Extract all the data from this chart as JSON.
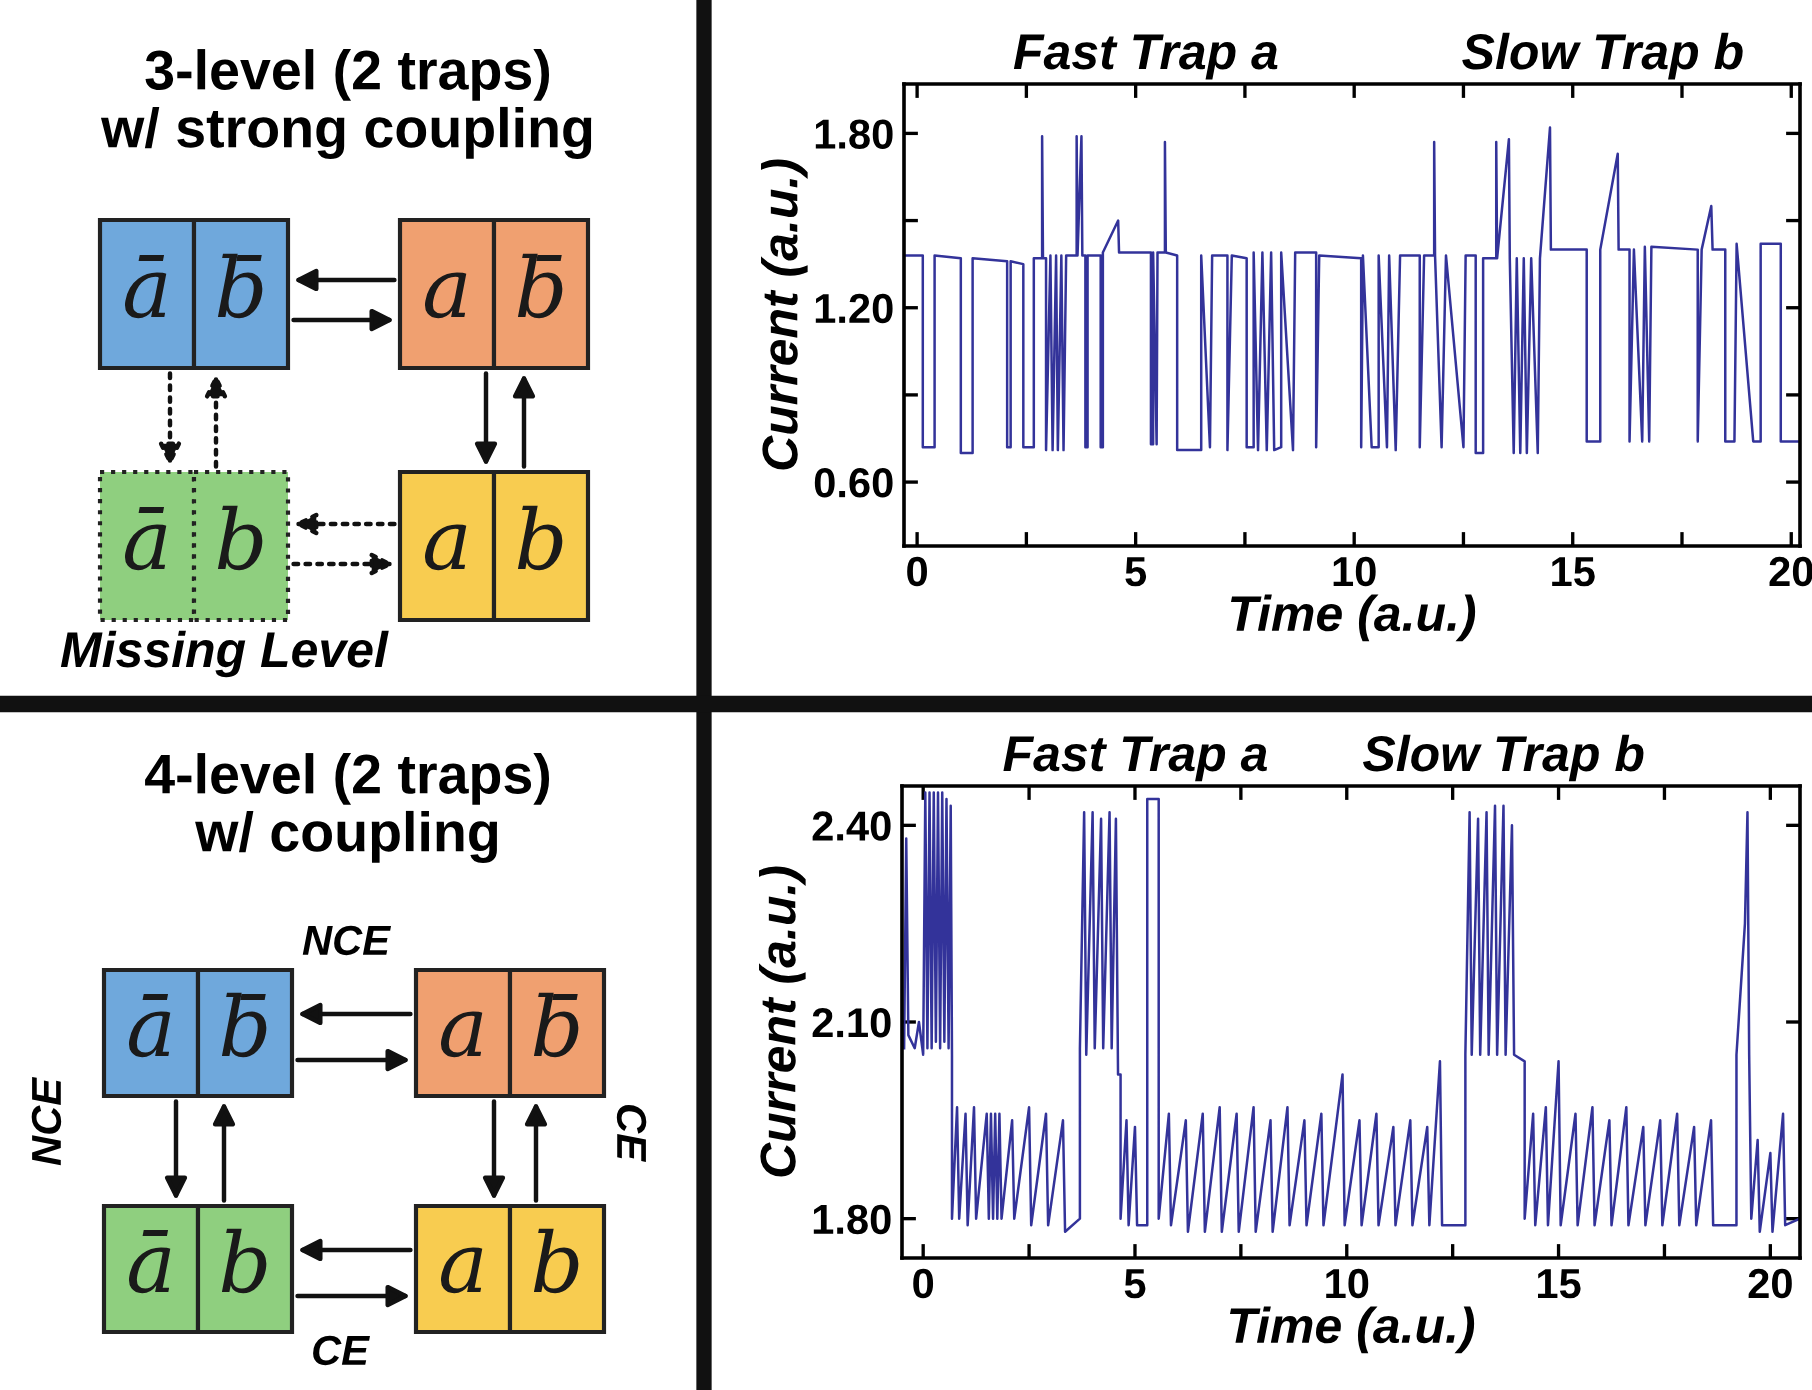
{
  "chart_data": [
    {
      "type": "other",
      "title": "3-level (2 traps)\nw/ strong coupling",
      "annotations": [
        "ā",
        "b̄",
        "a",
        "b̄",
        "ā",
        "b",
        "a",
        "b",
        "Missing Level"
      ]
    },
    {
      "type": "line",
      "annotations": [
        "Fast Trap a",
        "Slow Trap b"
      ],
      "xlabel": "Time (a.u.)",
      "ylabel": "Current (a.u.)",
      "color": "#33339a",
      "xlim": [
        -0.3,
        20.2
      ],
      "xticks": [
        0,
        {
          "value": 2.5,
          "label": null
        },
        5,
        {
          "value": 7.5,
          "label": null
        },
        10,
        {
          "value": 12.5,
          "label": null
        },
        15,
        {
          "value": 17.5,
          "label": null
        },
        20
      ],
      "ylim": [
        0.38,
        1.97
      ],
      "yticks": [
        {
          "value": 0.6,
          "label": "0.60"
        },
        {
          "value": 0.9,
          "label": null
        },
        {
          "value": 1.2,
          "label": "1.20"
        },
        {
          "value": 1.5,
          "label": null
        },
        {
          "value": 1.8,
          "label": "1.80"
        }
      ],
      "x": [
        -0.3,
        0.13,
        0.13,
        0.4,
        0.4,
        1.0,
        1.0,
        1.27,
        1.27,
        2.06,
        2.06,
        2.14,
        2.14,
        2.43,
        2.43,
        2.67,
        2.67,
        2.86,
        2.86,
        2.88,
        2.95,
        2.95,
        3.05,
        3.1,
        3.18,
        3.22,
        3.3,
        3.35,
        3.41,
        3.65,
        3.65,
        3.67,
        3.76,
        3.78,
        3.85,
        3.85,
        3.9,
        3.9,
        4.2,
        4.2,
        4.25,
        4.25,
        4.6,
        4.62,
        5.35,
        5.35,
        5.4,
        5.4,
        5.48,
        5.5,
        5.67,
        5.67,
        5.69,
        5.95,
        5.95,
        6.5,
        6.5,
        6.7,
        6.75,
        7.1,
        7.1,
        7.2,
        7.54,
        7.54,
        7.7,
        7.7,
        7.8,
        7.9,
        8.0,
        8.1,
        8.17,
        8.33,
        8.33,
        8.6,
        8.65,
        9.13,
        9.13,
        9.2,
        10.16,
        10.16,
        10.2,
        10.4,
        10.56,
        10.56,
        10.75,
        10.8,
        10.95,
        11.05,
        11.5,
        11.5,
        11.6,
        11.83,
        11.83,
        11.85,
        12.0,
        12.1,
        12.5,
        12.55,
        12.78,
        12.78,
        12.95,
        12.95,
        13.25,
        13.25,
        13.27,
        13.54,
        13.56,
        13.65,
        13.72,
        13.8,
        13.88,
        13.95,
        14.05,
        14.2,
        14.25,
        14.48,
        14.5,
        15.32,
        15.32,
        15.63,
        15.63,
        16.03,
        16.05,
        16.3,
        16.3,
        16.4,
        16.59,
        16.65,
        16.75,
        16.8,
        17.86,
        17.86,
        17.95,
        18.17,
        18.2,
        18.49,
        18.49,
        18.7,
        18.75,
        19.13,
        19.3,
        19.3,
        19.76,
        19.76,
        20.2
      ],
      "values": [
        1.38,
        1.38,
        0.72,
        0.72,
        1.38,
        1.37,
        0.7,
        0.7,
        1.37,
        1.36,
        0.72,
        0.72,
        1.36,
        1.35,
        0.72,
        0.72,
        1.37,
        1.37,
        1.79,
        1.37,
        1.37,
        0.71,
        1.38,
        0.71,
        1.38,
        0.71,
        1.38,
        0.71,
        1.38,
        1.38,
        1.79,
        1.38,
        1.79,
        1.38,
        1.38,
        0.72,
        0.72,
        1.38,
        1.38,
        0.72,
        0.72,
        1.39,
        1.5,
        1.39,
        1.39,
        0.73,
        0.73,
        1.39,
        0.73,
        1.39,
        1.39,
        1.77,
        1.39,
        1.38,
        0.71,
        0.71,
        1.38,
        0.72,
        1.38,
        1.38,
        0.71,
        1.38,
        1.37,
        0.72,
        0.72,
        1.39,
        0.71,
        1.39,
        0.71,
        1.39,
        0.71,
        0.72,
        1.39,
        0.71,
        1.39,
        1.39,
        0.72,
        1.38,
        1.37,
        0.72,
        1.38,
        0.72,
        0.72,
        1.38,
        0.72,
        1.38,
        0.71,
        1.38,
        1.38,
        0.72,
        1.38,
        1.38,
        1.77,
        1.38,
        0.72,
        1.38,
        0.72,
        1.38,
        1.38,
        0.7,
        0.7,
        1.37,
        1.37,
        1.77,
        1.37,
        1.78,
        1.37,
        0.7,
        1.37,
        0.7,
        1.37,
        0.7,
        1.37,
        0.7,
        1.37,
        1.82,
        1.4,
        1.4,
        0.74,
        0.74,
        1.4,
        1.73,
        1.4,
        1.4,
        0.74,
        1.4,
        0.74,
        1.41,
        0.74,
        1.41,
        1.4,
        0.74,
        1.4,
        1.55,
        1.4,
        1.4,
        0.74,
        0.74,
        1.42,
        0.74,
        0.74,
        1.42,
        1.42,
        0.74,
        0.74
      ]
    },
    {
      "type": "other",
      "title": "4-level (2 traps)\nw/ coupling",
      "annotations": [
        "ā",
        "b̄",
        "a",
        "b̄",
        "ā",
        "b",
        "a",
        "b",
        "NCE",
        "NCE",
        "CE",
        "CE"
      ]
    },
    {
      "type": "line",
      "annotations": [
        "Fast Trap a",
        "Slow Trap b"
      ],
      "xlabel": "Time (a.u.)",
      "ylabel": "Current (a.u.)",
      "color": "#33339a",
      "xlim": [
        -0.5,
        20.7
      ],
      "xticks": [
        0,
        {
          "value": 2.5,
          "label": null
        },
        5,
        {
          "value": 7.5,
          "label": null
        },
        10,
        {
          "value": 12.5,
          "label": null
        },
        15,
        {
          "value": 17.5,
          "label": null
        },
        20
      ],
      "ylim": [
        1.74,
        2.46
      ],
      "yticks": [
        {
          "value": 1.8,
          "label": "1.80"
        },
        {
          "value": 2.1,
          "label": "2.10"
        },
        {
          "value": 2.4,
          "label": "2.40"
        }
      ],
      "x": [
        -0.45,
        -0.4,
        -0.35,
        -0.2,
        -0.1,
        0.0,
        0.05,
        0.1,
        0.15,
        0.2,
        0.25,
        0.3,
        0.35,
        0.4,
        0.45,
        0.5,
        0.55,
        0.6,
        0.65,
        0.68,
        0.68,
        0.8,
        0.85,
        1.0,
        1.05,
        1.2,
        1.25,
        1.5,
        1.55,
        1.6,
        1.65,
        1.7,
        1.75,
        1.8,
        1.85,
        2.1,
        2.15,
        2.5,
        2.55,
        2.9,
        2.95,
        3.3,
        3.35,
        3.7,
        3.7,
        3.8,
        3.85,
        4.0,
        4.05,
        4.2,
        4.25,
        4.4,
        4.45,
        4.55,
        4.6,
        4.66,
        4.66,
        4.8,
        4.85,
        5.0,
        5.05,
        5.29,
        5.29,
        5.56,
        5.56,
        5.8,
        5.85,
        6.2,
        6.25,
        6.6,
        6.65,
        7.0,
        7.05,
        7.4,
        7.45,
        7.8,
        7.85,
        8.2,
        8.25,
        8.6,
        8.65,
        9.0,
        9.05,
        9.4,
        9.45,
        9.9,
        9.95,
        10.3,
        10.35,
        10.7,
        10.75,
        11.1,
        11.15,
        11.5,
        11.55,
        11.9,
        11.95,
        12.2,
        12.25,
        12.8,
        12.8,
        12.9,
        12.95,
        13.1,
        13.15,
        13.3,
        13.35,
        13.5,
        13.55,
        13.7,
        13.75,
        13.9,
        13.95,
        14.2,
        14.2,
        14.4,
        14.45,
        14.7,
        14.75,
        15.0,
        15.05,
        15.4,
        15.45,
        15.8,
        15.85,
        16.2,
        16.25,
        16.6,
        16.65,
        17.0,
        17.05,
        17.4,
        17.45,
        17.8,
        17.85,
        18.2,
        18.25,
        18.6,
        18.65,
        19.2,
        19.2,
        19.4,
        19.46,
        19.5,
        19.55,
        19.7,
        19.75,
        20.0,
        20.05,
        20.3,
        20.35,
        20.7
      ],
      "values": [
        2.06,
        2.38,
        2.08,
        2.06,
        2.1,
        2.05,
        2.45,
        2.06,
        2.45,
        2.06,
        2.45,
        2.07,
        2.45,
        2.06,
        2.45,
        2.07,
        2.44,
        2.06,
        2.43,
        2.05,
        1.8,
        1.97,
        1.8,
        1.96,
        1.79,
        1.97,
        1.8,
        1.96,
        1.8,
        1.96,
        1.8,
        1.96,
        1.8,
        1.96,
        1.8,
        1.95,
        1.8,
        1.97,
        1.79,
        1.96,
        1.79,
        1.95,
        1.78,
        1.8,
        2.06,
        2.42,
        2.05,
        2.42,
        2.06,
        2.41,
        2.06,
        2.42,
        2.06,
        2.41,
        2.02,
        2.02,
        1.8,
        1.95,
        1.79,
        1.94,
        1.79,
        1.79,
        2.44,
        2.44,
        1.8,
        1.96,
        1.79,
        1.95,
        1.78,
        1.96,
        1.78,
        1.97,
        1.78,
        1.96,
        1.78,
        1.97,
        1.78,
        1.95,
        1.78,
        1.97,
        1.79,
        1.95,
        1.79,
        1.96,
        1.79,
        2.02,
        1.79,
        1.95,
        1.79,
        1.96,
        1.79,
        1.94,
        1.79,
        1.95,
        1.79,
        1.94,
        1.79,
        2.04,
        1.79,
        1.79,
        2.05,
        2.42,
        2.05,
        2.41,
        2.05,
        2.42,
        2.05,
        2.43,
        2.05,
        2.43,
        2.05,
        2.4,
        2.05,
        2.04,
        1.8,
        1.96,
        1.79,
        1.97,
        1.79,
        2.04,
        1.79,
        1.96,
        1.79,
        1.97,
        1.79,
        1.95,
        1.79,
        1.97,
        1.79,
        1.94,
        1.79,
        1.95,
        1.79,
        1.96,
        1.79,
        1.94,
        1.79,
        1.95,
        1.79,
        1.79,
        2.05,
        2.25,
        2.42,
        2.05,
        1.8,
        1.92,
        1.78,
        1.9,
        1.78,
        1.96,
        1.79,
        1.8
      ]
    }
  ]
}
